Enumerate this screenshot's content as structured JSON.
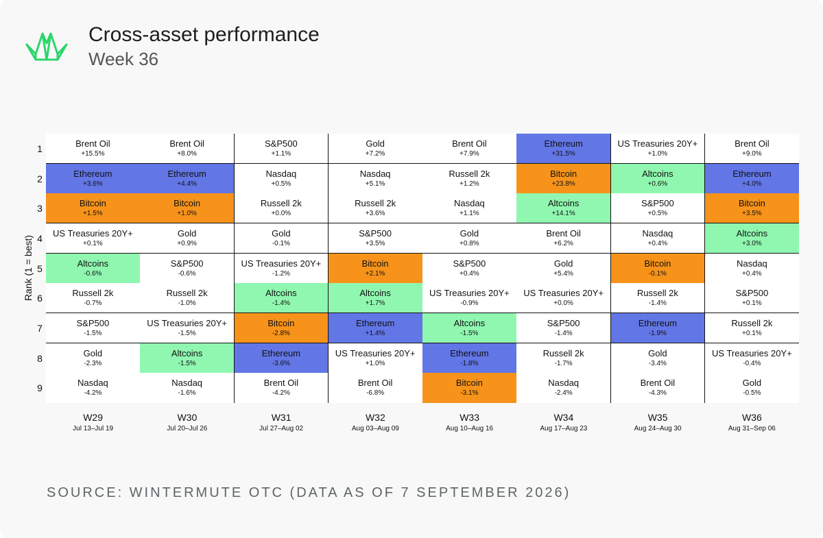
{
  "header": {
    "title": "Cross-asset performance",
    "subtitle": "Week 36"
  },
  "footer": {
    "source": "SOURCE: WINTERMUTE OTC (DATA AS OF 7 SEPTEMBER 2026)"
  },
  "colors": {
    "Ethereum": "#6276e6",
    "Bitcoin": "#f7931a",
    "Altcoins": "#90f7b0",
    "default": "#ffffff",
    "logo": "#2bd66a"
  },
  "chart_data": {
    "type": "table",
    "ylabel": "Rank (1 = best)",
    "ranks": [
      "1",
      "2",
      "3",
      "4",
      "5",
      "6",
      "7",
      "8",
      "9"
    ],
    "weeks": [
      {
        "label": "W29",
        "range": "Jul 13–Jul 19",
        "rows": [
          {
            "asset": "Brent Oil",
            "value": "+15.5%"
          },
          {
            "asset": "Ethereum",
            "value": "+3.6%"
          },
          {
            "asset": "Bitcoin",
            "value": "+1.5%"
          },
          {
            "asset": "US Treasuries 20Y+",
            "value": "+0.1%"
          },
          {
            "asset": "Altcoins",
            "value": "-0.6%"
          },
          {
            "asset": "Russell 2k",
            "value": "-0.7%"
          },
          {
            "asset": "S&P500",
            "value": "-1.5%"
          },
          {
            "asset": "Gold",
            "value": "-2.3%"
          },
          {
            "asset": "Nasdaq",
            "value": "-4.2%"
          }
        ]
      },
      {
        "label": "W30",
        "range": "Jul 20–Jul 26",
        "rows": [
          {
            "asset": "Brent Oil",
            "value": "+8.0%"
          },
          {
            "asset": "Ethereum",
            "value": "+4.4%"
          },
          {
            "asset": "Bitcoin",
            "value": "+1.0%"
          },
          {
            "asset": "Gold",
            "value": "+0.9%"
          },
          {
            "asset": "S&P500",
            "value": "-0.6%"
          },
          {
            "asset": "Russell 2k",
            "value": "-1.0%"
          },
          {
            "asset": "US Treasuries 20Y+",
            "value": "-1.5%"
          },
          {
            "asset": "Altcoins",
            "value": "-1.5%"
          },
          {
            "asset": "Nasdaq",
            "value": "-1.6%"
          }
        ]
      },
      {
        "label": "W31",
        "range": "Jul 27–Aug 02",
        "rows": [
          {
            "asset": "S&P500",
            "value": "+1.1%"
          },
          {
            "asset": "Nasdaq",
            "value": "+0.5%"
          },
          {
            "asset": "Russell 2k",
            "value": "+0.0%"
          },
          {
            "asset": "Gold",
            "value": "-0.1%"
          },
          {
            "asset": "US Treasuries 20Y+",
            "value": "-1.2%"
          },
          {
            "asset": "Altcoins",
            "value": "-1.4%"
          },
          {
            "asset": "Bitcoin",
            "value": "-2.8%"
          },
          {
            "asset": "Ethereum",
            "value": "-3.6%"
          },
          {
            "asset": "Brent Oil",
            "value": "-4.2%"
          }
        ]
      },
      {
        "label": "W32",
        "range": "Aug 03–Aug 09",
        "rows": [
          {
            "asset": "Gold",
            "value": "+7.2%"
          },
          {
            "asset": "Nasdaq",
            "value": "+5.1%"
          },
          {
            "asset": "Russell 2k",
            "value": "+3.6%"
          },
          {
            "asset": "S&P500",
            "value": "+3.5%"
          },
          {
            "asset": "Bitcoin",
            "value": "+2.1%"
          },
          {
            "asset": "Altcoins",
            "value": "+1.7%"
          },
          {
            "asset": "Ethereum",
            "value": "+1.4%"
          },
          {
            "asset": "US Treasuries 20Y+",
            "value": "+1.0%"
          },
          {
            "asset": "Brent Oil",
            "value": "-6.8%"
          }
        ]
      },
      {
        "label": "W33",
        "range": "Aug 10–Aug 16",
        "rows": [
          {
            "asset": "Brent Oil",
            "value": "+7.9%"
          },
          {
            "asset": "Russell 2k",
            "value": "+1.2%"
          },
          {
            "asset": "Nasdaq",
            "value": "+1.1%"
          },
          {
            "asset": "Gold",
            "value": "+0.8%"
          },
          {
            "asset": "S&P500",
            "value": "+0.4%"
          },
          {
            "asset": "US Treasuries 20Y+",
            "value": "-0.9%"
          },
          {
            "asset": "Altcoins",
            "value": "-1.5%"
          },
          {
            "asset": "Ethereum",
            "value": "-1.8%"
          },
          {
            "asset": "Bitcoin",
            "value": "-3.1%"
          }
        ]
      },
      {
        "label": "W34",
        "range": "Aug 17–Aug 23",
        "rows": [
          {
            "asset": "Ethereum",
            "value": "+31.5%"
          },
          {
            "asset": "Bitcoin",
            "value": "+23.8%"
          },
          {
            "asset": "Altcoins",
            "value": "+14.1%"
          },
          {
            "asset": "Brent Oil",
            "value": "+6.2%"
          },
          {
            "asset": "Gold",
            "value": "+5.4%"
          },
          {
            "asset": "US Treasuries 20Y+",
            "value": "+0.0%"
          },
          {
            "asset": "S&P500",
            "value": "-1.4%"
          },
          {
            "asset": "Russell 2k",
            "value": "-1.7%"
          },
          {
            "asset": "Nasdaq",
            "value": "-2.4%"
          }
        ]
      },
      {
        "label": "W35",
        "range": "Aug 24–Aug 30",
        "rows": [
          {
            "asset": "US Treasuries 20Y+",
            "value": "+1.0%"
          },
          {
            "asset": "Altcoins",
            "value": "+0.6%"
          },
          {
            "asset": "S&P500",
            "value": "+0.5%"
          },
          {
            "asset": "Nasdaq",
            "value": "+0.4%"
          },
          {
            "asset": "Bitcoin",
            "value": "-0.1%"
          },
          {
            "asset": "Russell 2k",
            "value": "-1.4%"
          },
          {
            "asset": "Ethereum",
            "value": "-1.9%"
          },
          {
            "asset": "Gold",
            "value": "-3.4%"
          },
          {
            "asset": "Brent Oil",
            "value": "-4.3%"
          }
        ]
      },
      {
        "label": "W36",
        "range": "Aug 31–Sep 06",
        "rows": [
          {
            "asset": "Brent Oil",
            "value": "+9.0%"
          },
          {
            "asset": "Ethereum",
            "value": "+4.0%"
          },
          {
            "asset": "Bitcoin",
            "value": "+3.5%"
          },
          {
            "asset": "Altcoins",
            "value": "+3.0%"
          },
          {
            "asset": "Nasdaq",
            "value": "+0.4%"
          },
          {
            "asset": "S&P500",
            "value": "+0.1%"
          },
          {
            "asset": "Russell 2k",
            "value": "+0.1%"
          },
          {
            "asset": "US Treasuries 20Y+",
            "value": "-0.4%"
          },
          {
            "asset": "Gold",
            "value": "-0.5%"
          }
        ]
      }
    ]
  }
}
